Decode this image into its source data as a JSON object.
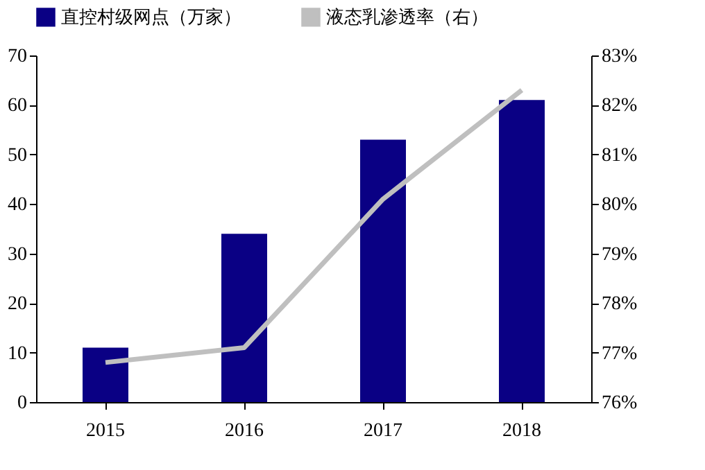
{
  "chart_data": {
    "type": "bar",
    "categories": [
      "2015",
      "2016",
      "2017",
      "2018"
    ],
    "series": [
      {
        "name": "直控村级网点（万家）",
        "color": "#0a0084",
        "values": [
          11,
          34,
          53,
          61
        ]
      },
      {
        "name": "液态乳渗透率（右）",
        "color": "#bfbfbf",
        "type": "line",
        "axis": "y2",
        "values": [
          76.8,
          77.1,
          80.1,
          82.3
        ]
      }
    ],
    "ylim": [
      0,
      70
    ],
    "yticks": [
      0,
      10,
      20,
      30,
      40,
      50,
      60,
      70
    ],
    "y2lim": [
      76,
      83
    ],
    "y2ticks": [
      {
        "value": 76,
        "label": "76%"
      },
      {
        "value": 77,
        "label": "77%"
      },
      {
        "value": 78,
        "label": "78%"
      },
      {
        "value": 79,
        "label": "79%"
      },
      {
        "value": 80,
        "label": "80%"
      },
      {
        "value": 81,
        "label": "81%"
      },
      {
        "value": 82,
        "label": "82%"
      },
      {
        "value": 83,
        "label": "83%"
      }
    ],
    "legend": "top",
    "grid": false
  }
}
